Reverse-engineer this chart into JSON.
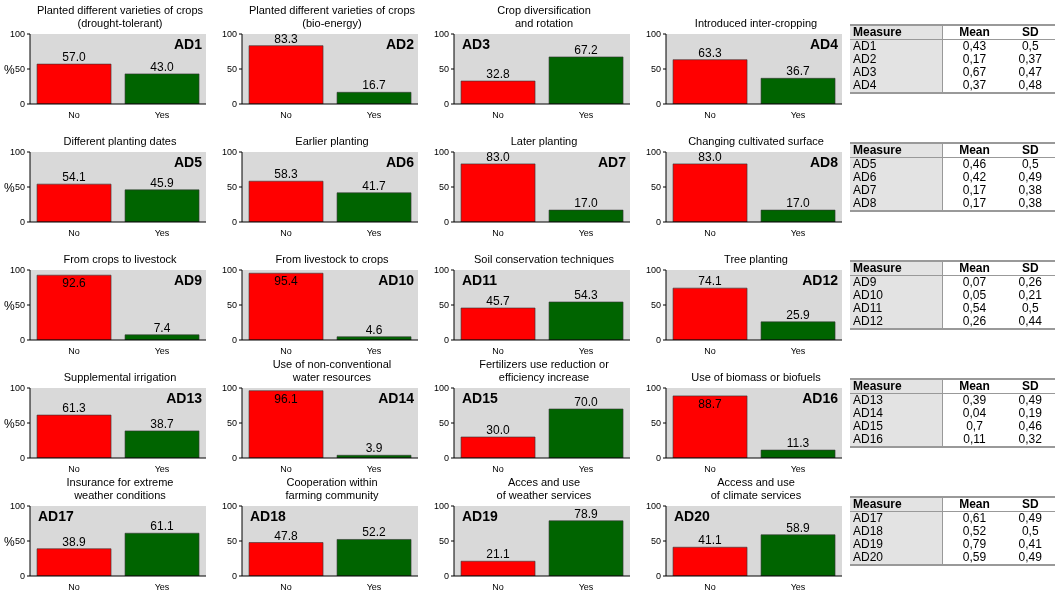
{
  "chart_data": [
    {
      "type": "bar",
      "title": "Planted different varieties of crops\n(drought-tolerant)",
      "ylabel": "%",
      "annotations": [
        "AD1"
      ],
      "categories": [
        "No",
        "Yes"
      ],
      "values": [
        57.0,
        43.0
      ],
      "value_labels": [
        "57.0",
        "43.0"
      ],
      "colors": [
        "#ff0000",
        "#006400"
      ],
      "ylim": [
        0,
        100
      ],
      "yticks": [
        0,
        50,
        100
      ]
    },
    {
      "type": "bar",
      "title": "Planted different varieties of crops\n(bio-energy)",
      "annotations": [
        "AD2"
      ],
      "categories": [
        "No",
        "Yes"
      ],
      "values": [
        83.3,
        16.7
      ],
      "value_labels": [
        "83.3",
        "16.7"
      ],
      "colors": [
        "#ff0000",
        "#006400"
      ],
      "ylim": [
        0,
        100
      ],
      "yticks": [
        0,
        50,
        100
      ]
    },
    {
      "type": "bar",
      "title": "Crop diversification\nand rotation",
      "annotations": [
        "AD3"
      ],
      "categories": [
        "No",
        "Yes"
      ],
      "values": [
        32.8,
        67.2
      ],
      "value_labels": [
        "32.8",
        "67.2"
      ],
      "colors": [
        "#ff0000",
        "#006400"
      ],
      "ylim": [
        0,
        100
      ],
      "yticks": [
        0,
        50,
        100
      ]
    },
    {
      "type": "bar",
      "title": "Introduced inter-cropping",
      "annotations": [
        "AD4"
      ],
      "categories": [
        "No",
        "Yes"
      ],
      "values": [
        63.3,
        36.7
      ],
      "value_labels": [
        "63.3",
        "36.7"
      ],
      "colors": [
        "#ff0000",
        "#006400"
      ],
      "ylim": [
        0,
        100
      ],
      "yticks": [
        0,
        50,
        100
      ]
    },
    {
      "type": "other",
      "annotations": [
        "Measure",
        "Mean",
        "SD",
        "AD1",
        "0,43",
        "0,5",
        "AD2",
        "0,17",
        "0,37",
        "AD3",
        "0,67",
        "0,47",
        "AD4",
        "0,37",
        "0,48"
      ]
    },
    {
      "type": "bar",
      "title": "Different planting dates",
      "ylabel": "%",
      "annotations": [
        "AD5"
      ],
      "categories": [
        "No",
        "Yes"
      ],
      "values": [
        54.1,
        45.9
      ],
      "value_labels": [
        "54.1",
        "45.9"
      ],
      "colors": [
        "#ff0000",
        "#006400"
      ],
      "ylim": [
        0,
        100
      ],
      "yticks": [
        0,
        50,
        100
      ]
    },
    {
      "type": "bar",
      "title": "Earlier planting",
      "annotations": [
        "AD6"
      ],
      "categories": [
        "No",
        "Yes"
      ],
      "values": [
        58.3,
        41.7
      ],
      "value_labels": [
        "58.3",
        "41.7"
      ],
      "colors": [
        "#ff0000",
        "#006400"
      ],
      "ylim": [
        0,
        100
      ],
      "yticks": [
        0,
        50,
        100
      ]
    },
    {
      "type": "bar",
      "title": "Later planting",
      "annotations": [
        "AD7"
      ],
      "categories": [
        "No",
        "Yes"
      ],
      "values": [
        83.0,
        17.0
      ],
      "value_labels": [
        "83.0",
        "17.0"
      ],
      "colors": [
        "#ff0000",
        "#006400"
      ],
      "ylim": [
        0,
        100
      ],
      "yticks": [
        0,
        50,
        100
      ]
    },
    {
      "type": "bar",
      "title": "Changing cultivated surface",
      "annotations": [
        "AD8"
      ],
      "categories": [
        "No",
        "Yes"
      ],
      "values": [
        83.0,
        17.0
      ],
      "value_labels": [
        "83.0",
        "17.0"
      ],
      "colors": [
        "#ff0000",
        "#006400"
      ],
      "ylim": [
        0,
        100
      ],
      "yticks": [
        0,
        50,
        100
      ]
    },
    {
      "type": "other",
      "annotations": [
        "Measure",
        "Mean",
        "SD",
        "AD5",
        "0,46",
        "0,5",
        "AD6",
        "0,42",
        "0,49",
        "AD7",
        "0,17",
        "0,38",
        "AD8",
        "0,17",
        "0,38"
      ]
    },
    {
      "type": "bar",
      "title": "From crops to livestock",
      "ylabel": "%",
      "annotations": [
        "AD9"
      ],
      "categories": [
        "No",
        "Yes"
      ],
      "values": [
        92.6,
        7.4
      ],
      "value_labels": [
        "92.6",
        "7.4"
      ],
      "colors": [
        "#ff0000",
        "#006400"
      ],
      "ylim": [
        0,
        100
      ],
      "yticks": [
        0,
        50,
        100
      ]
    },
    {
      "type": "bar",
      "title": "From livestock to crops",
      "annotations": [
        "AD10"
      ],
      "categories": [
        "No",
        "Yes"
      ],
      "values": [
        95.4,
        4.6
      ],
      "value_labels": [
        "95.4",
        "4.6"
      ],
      "colors": [
        "#ff0000",
        "#006400"
      ],
      "ylim": [
        0,
        100
      ],
      "yticks": [
        0,
        50,
        100
      ]
    },
    {
      "type": "bar",
      "title": "Soil conservation techniques",
      "annotations": [
        "AD11"
      ],
      "categories": [
        "No",
        "Yes"
      ],
      "values": [
        45.7,
        54.3
      ],
      "value_labels": [
        "45.7",
        "54.3"
      ],
      "colors": [
        "#ff0000",
        "#006400"
      ],
      "ylim": [
        0,
        100
      ],
      "yticks": [
        0,
        50,
        100
      ]
    },
    {
      "type": "bar",
      "title": "Tree planting",
      "annotations": [
        "AD12"
      ],
      "categories": [
        "No",
        "Yes"
      ],
      "values": [
        74.1,
        25.9
      ],
      "value_labels": [
        "74.1",
        "25.9"
      ],
      "colors": [
        "#ff0000",
        "#006400"
      ],
      "ylim": [
        0,
        100
      ],
      "yticks": [
        0,
        50,
        100
      ]
    },
    {
      "type": "other",
      "annotations": [
        "Measure",
        "Mean",
        "SD",
        "AD9",
        "0,07",
        "0,26",
        "AD10",
        "0,05",
        "0,21",
        "AD11",
        "0,54",
        "0,5",
        "AD12",
        "0,26",
        "0,44"
      ]
    },
    {
      "type": "bar",
      "title": "Supplemental irrigation",
      "ylabel": "%",
      "annotations": [
        "AD13"
      ],
      "categories": [
        "No",
        "Yes"
      ],
      "values": [
        61.3,
        38.7
      ],
      "value_labels": [
        "61.3",
        "38.7"
      ],
      "colors": [
        "#ff0000",
        "#006400"
      ],
      "ylim": [
        0,
        100
      ],
      "yticks": [
        0,
        50,
        100
      ]
    },
    {
      "type": "bar",
      "title": "Use of non-conventional\nwater resources",
      "annotations": [
        "AD14"
      ],
      "categories": [
        "No",
        "Yes"
      ],
      "values": [
        96.1,
        3.9
      ],
      "value_labels": [
        "96.1",
        "3.9"
      ],
      "colors": [
        "#ff0000",
        "#006400"
      ],
      "ylim": [
        0,
        100
      ],
      "yticks": [
        0,
        50,
        100
      ]
    },
    {
      "type": "bar",
      "title": "Fertilizers use reduction or\nefficiency increase",
      "annotations": [
        "AD15"
      ],
      "categories": [
        "No",
        "Yes"
      ],
      "values": [
        30.0,
        70.0
      ],
      "value_labels": [
        "30.0",
        "70.0"
      ],
      "colors": [
        "#ff0000",
        "#006400"
      ],
      "ylim": [
        0,
        100
      ],
      "yticks": [
        0,
        50,
        100
      ]
    },
    {
      "type": "bar",
      "title": "Use of biomass or biofuels",
      "annotations": [
        "AD16"
      ],
      "categories": [
        "No",
        "Yes"
      ],
      "values": [
        88.7,
        11.3
      ],
      "value_labels": [
        "88.7",
        "11.3"
      ],
      "colors": [
        "#ff0000",
        "#006400"
      ],
      "ylim": [
        0,
        100
      ],
      "yticks": [
        0,
        50,
        100
      ]
    },
    {
      "type": "other",
      "annotations": [
        "Measure",
        "Mean",
        "SD",
        "AD13",
        "0,39",
        "0,49",
        "AD14",
        "0,04",
        "0,19",
        "AD15",
        "0,7",
        "0,46",
        "AD16",
        "0,11",
        "0,32"
      ]
    },
    {
      "type": "bar",
      "title": "Insurance for extreme\nweather conditions",
      "ylabel": "%",
      "annotations": [
        "AD17"
      ],
      "categories": [
        "No",
        "Yes"
      ],
      "values": [
        38.9,
        61.1
      ],
      "value_labels": [
        "38.9",
        "61.1"
      ],
      "colors": [
        "#ff0000",
        "#006400"
      ],
      "ylim": [
        0,
        100
      ],
      "yticks": [
        0,
        50,
        100
      ]
    },
    {
      "type": "bar",
      "title": "Cooperation within\nfarming community",
      "annotations": [
        "AD18"
      ],
      "categories": [
        "No",
        "Yes"
      ],
      "values": [
        47.8,
        52.2
      ],
      "value_labels": [
        "47.8",
        "52.2"
      ],
      "colors": [
        "#ff0000",
        "#006400"
      ],
      "ylim": [
        0,
        100
      ],
      "yticks": [
        0,
        50,
        100
      ]
    },
    {
      "type": "bar",
      "title": "Acces and use\nof weather services",
      "annotations": [
        "AD19"
      ],
      "categories": [
        "No",
        "Yes"
      ],
      "values": [
        21.1,
        78.9
      ],
      "value_labels": [
        "21.1",
        "78.9"
      ],
      "colors": [
        "#ff0000",
        "#006400"
      ],
      "ylim": [
        0,
        100
      ],
      "yticks": [
        0,
        50,
        100
      ]
    },
    {
      "type": "bar",
      "title": "Access and use\nof climate services",
      "annotations": [
        "AD20"
      ],
      "categories": [
        "No",
        "Yes"
      ],
      "values": [
        41.1,
        58.9
      ],
      "value_labels": [
        "41.1",
        "58.9"
      ],
      "colors": [
        "#ff0000",
        "#006400"
      ],
      "ylim": [
        0,
        100
      ],
      "yticks": [
        0,
        50,
        100
      ]
    },
    {
      "type": "other",
      "annotations": [
        "Measure",
        "Mean",
        "SD",
        "AD17",
        "0,61",
        "0,49",
        "AD18",
        "0,52",
        "0,5",
        "AD19",
        "0,79",
        "0,41",
        "AD20",
        "0,59",
        "0,49"
      ]
    }
  ]
}
